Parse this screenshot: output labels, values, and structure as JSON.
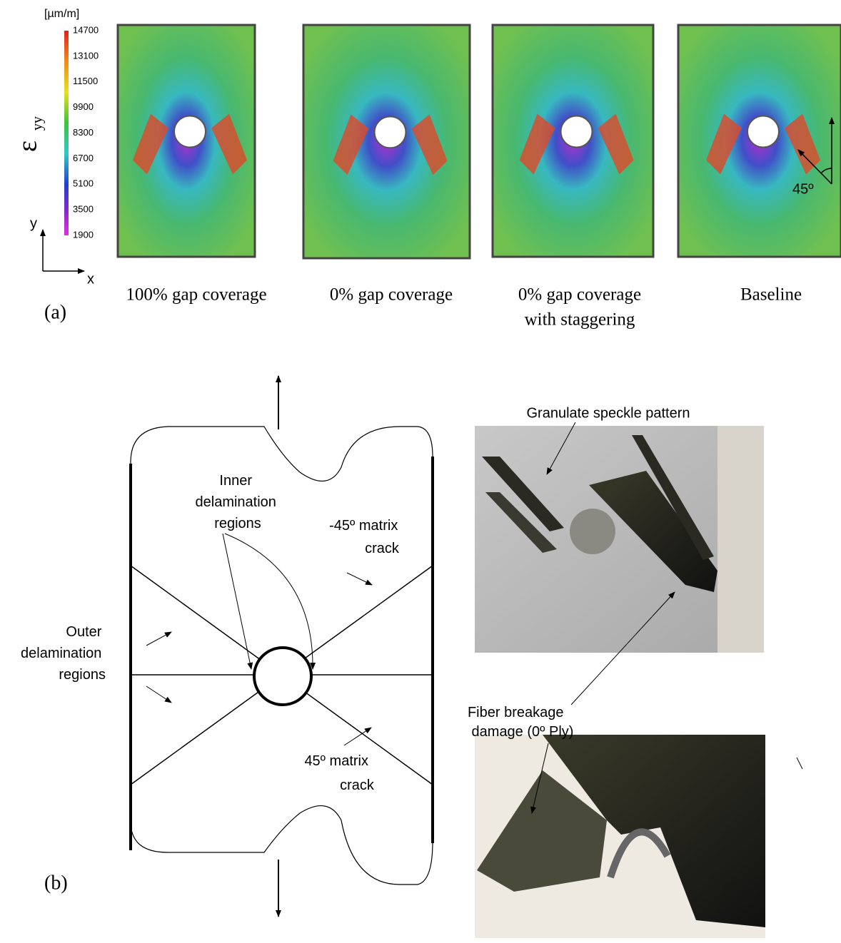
{
  "panel_a": {
    "label": "(a)",
    "colorbar": {
      "unit": "[µm/m]",
      "symbol": "ε",
      "subscript": "yy",
      "ticks": [
        14700,
        13100,
        11500,
        9900,
        8300,
        6700,
        5100,
        3500,
        1900
      ]
    },
    "axes": {
      "y": "y",
      "x": "x"
    },
    "specimens": [
      {
        "caption": [
          "100% gap coverage"
        ]
      },
      {
        "caption": [
          "0% gap coverage"
        ]
      },
      {
        "caption": [
          "0% gap coverage",
          "with staggering"
        ]
      },
      {
        "caption": [
          "Baseline"
        ]
      }
    ],
    "angle": "45º"
  },
  "panel_b": {
    "label": "(b)",
    "schematic": {
      "inner": [
        "Inner",
        "delamination",
        "regions"
      ],
      "outer": [
        "Outer",
        "delamination",
        "regions"
      ],
      "neg45": [
        "-45º matrix",
        "crack"
      ],
      "pos45": [
        "45º matrix",
        "crack"
      ]
    },
    "photos": {
      "speckle": "Granulate speckle pattern",
      "fiber": [
        "Fiber breakage",
        "damage (0º Ply)"
      ]
    }
  }
}
